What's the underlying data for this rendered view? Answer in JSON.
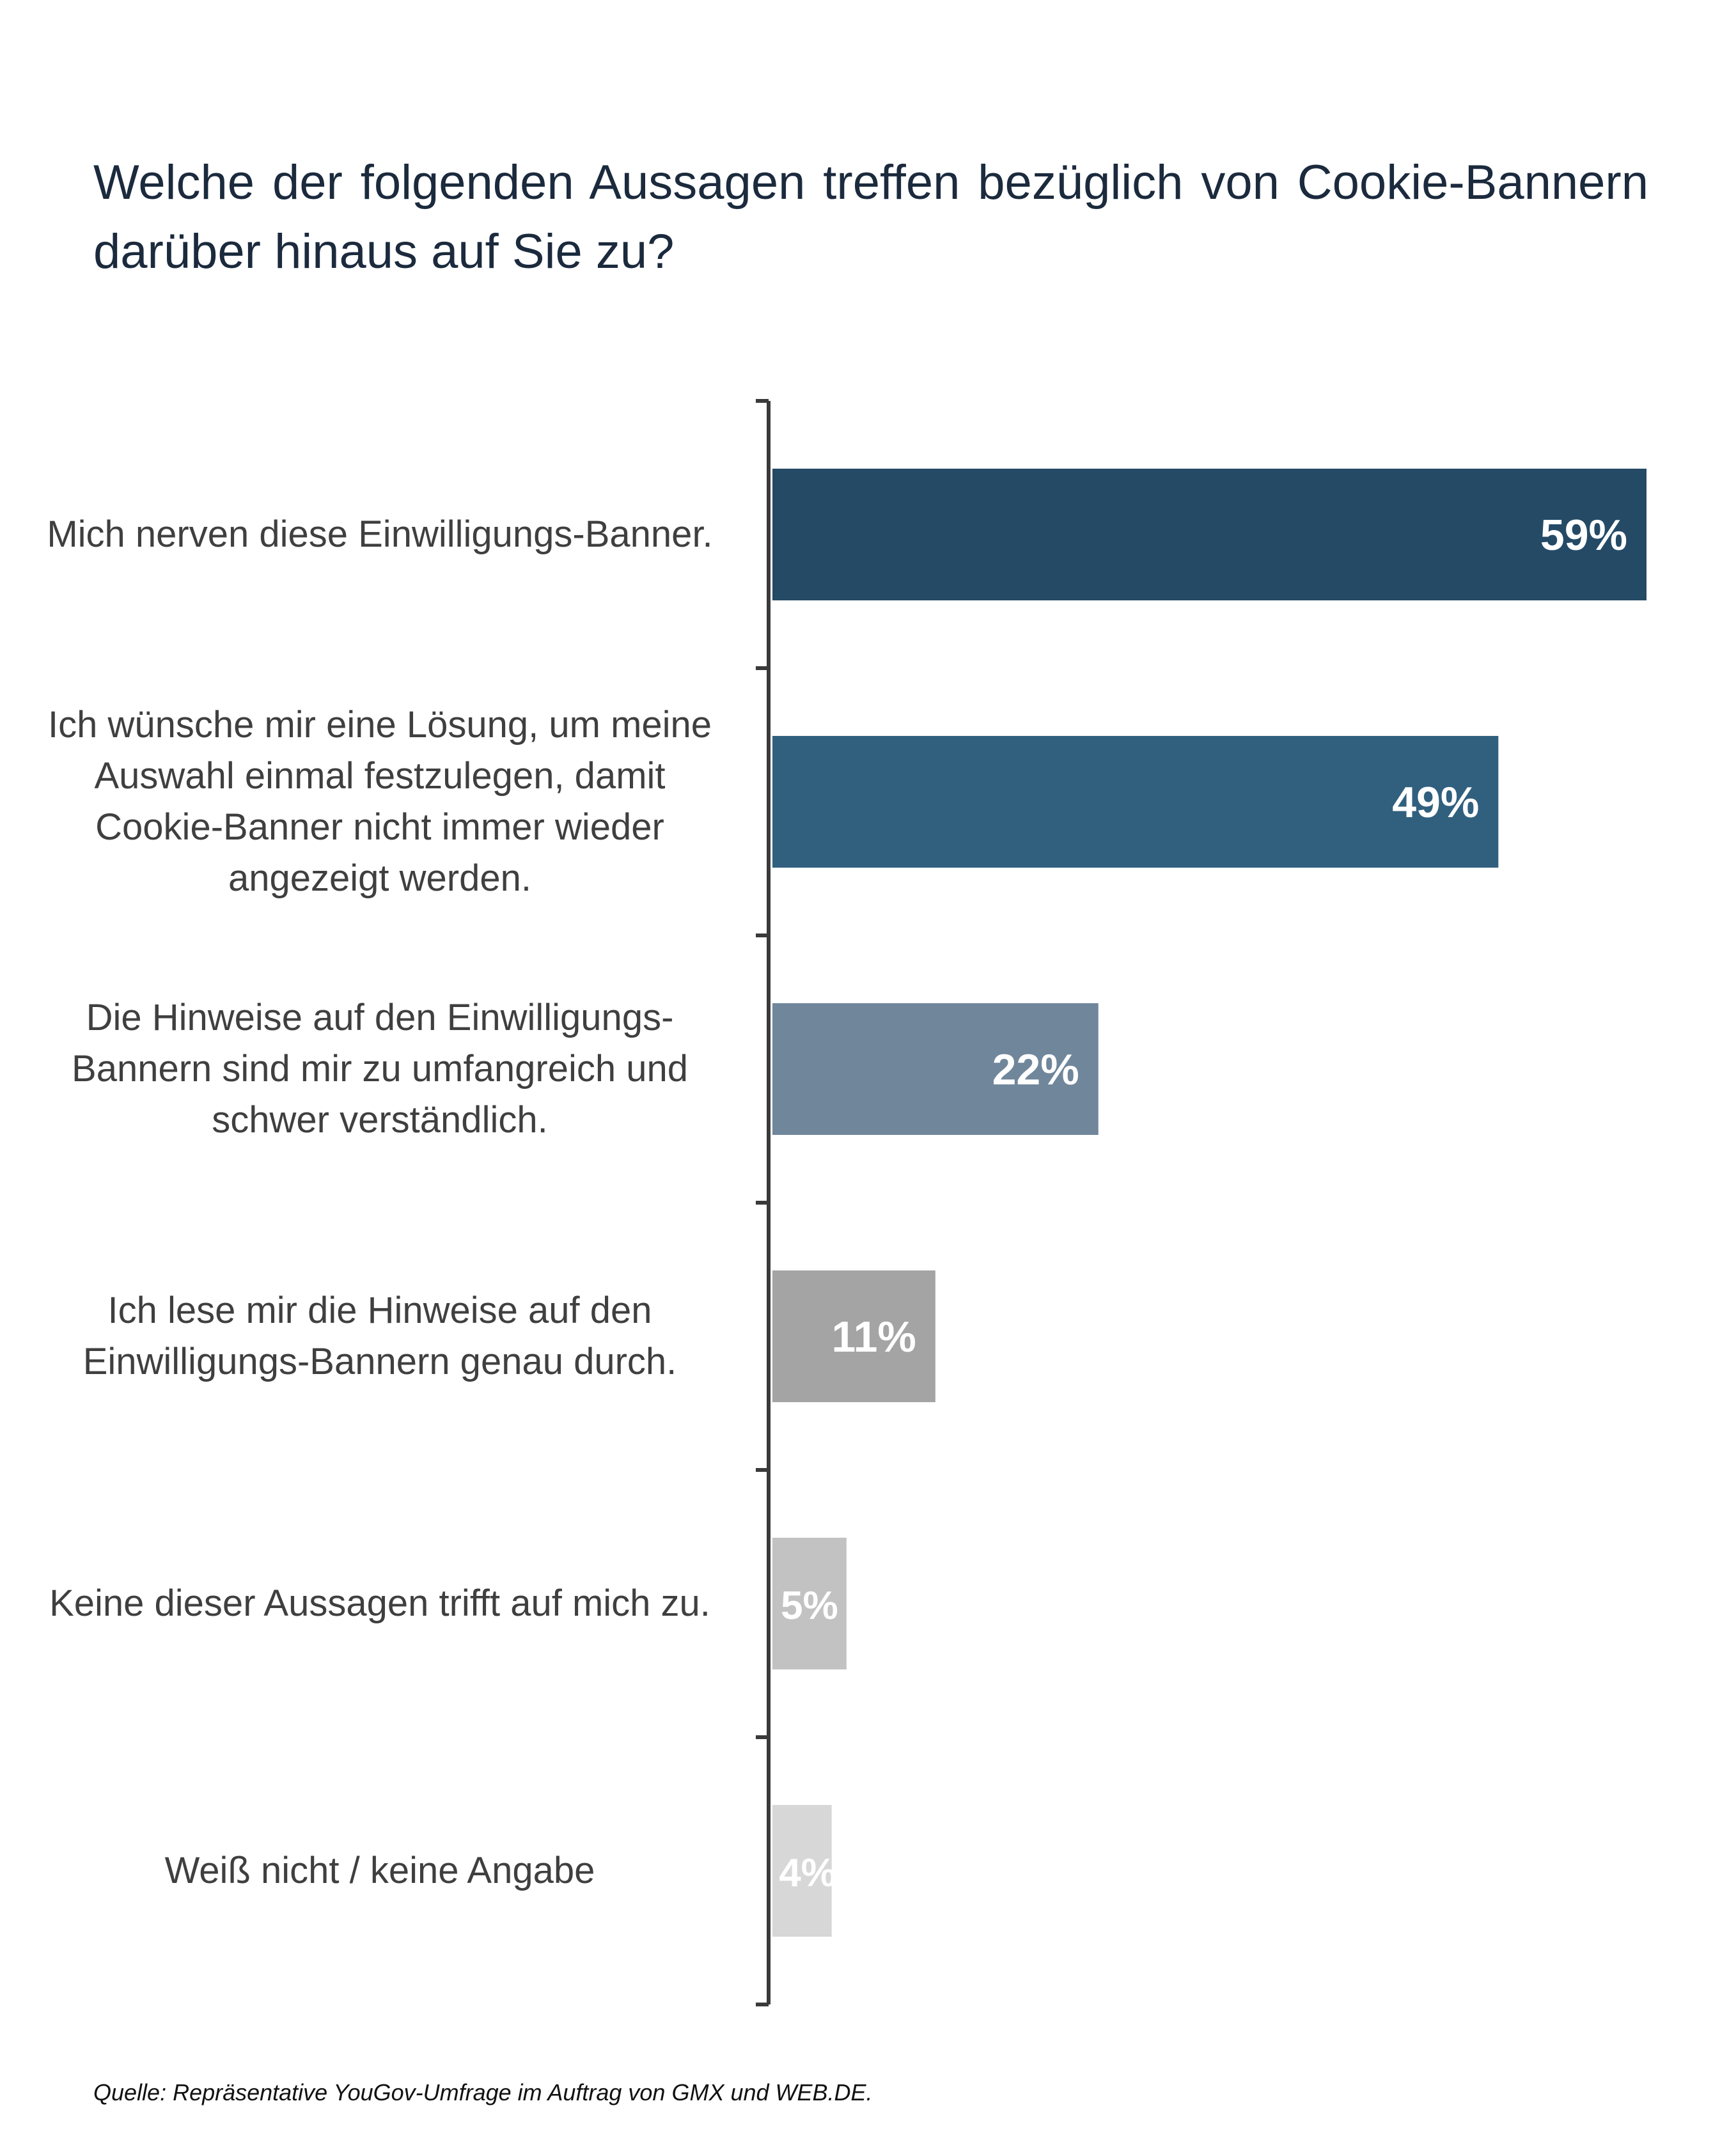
{
  "title": "Welche der folgenden Aussagen treffen bezüglich von Cookie-Bannern darüber hinaus auf Sie zu?",
  "source": "Quelle: Repräsentative YouGov-Umfrage im Auftrag von GMX und WEB.DE.",
  "chart_data": {
    "type": "bar",
    "orientation": "horizontal",
    "title": "Welche der folgenden Aussagen treffen bezüglich von Cookie-Bannern darüber hinaus auf Sie zu?",
    "categories": [
      "Mich nerven diese Einwilligungs-Banner.",
      "Ich wünsche mir eine Lösung, um meine Auswahl einmal festzulegen, damit Cookie-Banner nicht immer wieder angezeigt werden.",
      "Die Hinweise auf den Einwilligungs-Bannern sind mir zu umfangreich und schwer verständlich.",
      "Ich lese mir die Hinweise auf den Einwilligungs-Bannern genau durch.",
      "Keine dieser Aussagen trifft auf mich zu.",
      "Weiß nicht / keine Angabe"
    ],
    "values": [
      59,
      49,
      22,
      11,
      5,
      4
    ],
    "data_labels": [
      "59%",
      "49%",
      "22%",
      "11%",
      "5%",
      "4%"
    ],
    "unit": "%",
    "xlim": [
      0,
      59
    ],
    "colors": [
      "#244a66",
      "#31607f",
      "#70869b",
      "#a4a4a4",
      "#c2c2c2",
      "#d7d7d7"
    ],
    "label_color": "#ffffff",
    "axis_color": "#3a3a3a",
    "grid": false,
    "legend": "none"
  }
}
